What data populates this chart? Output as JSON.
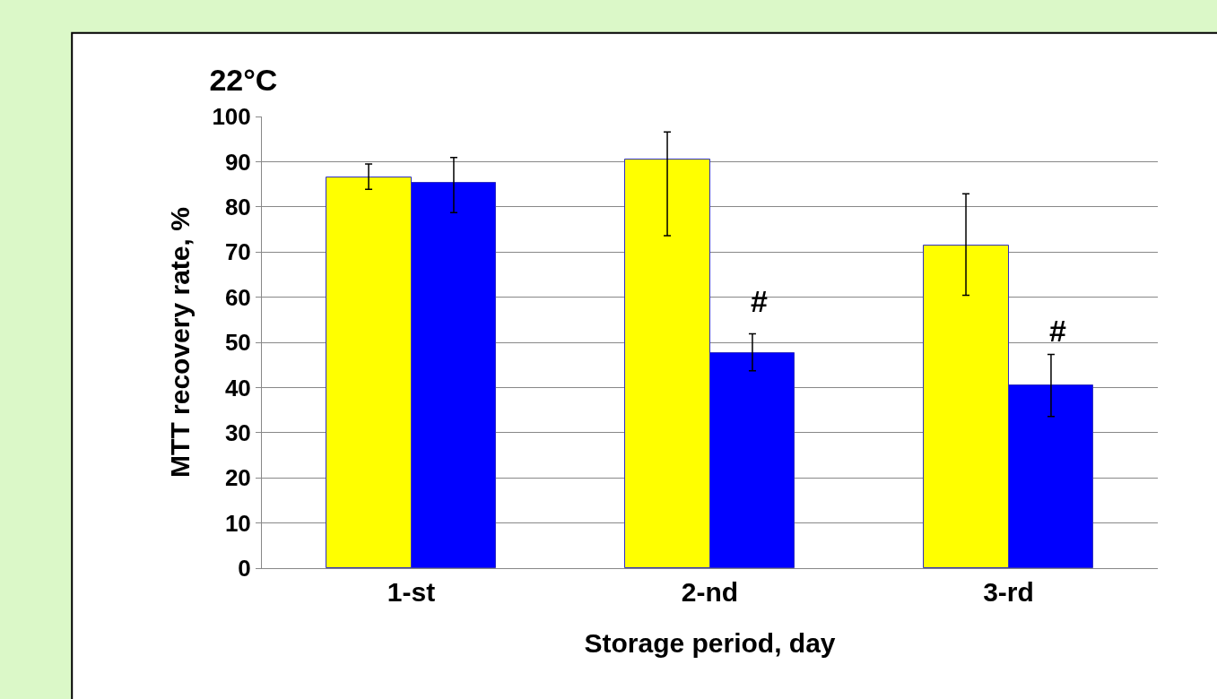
{
  "chart_data": {
    "type": "bar",
    "title": "22°C",
    "xlabel": "Storage period, day",
    "ylabel": "MTT recovery rate, %",
    "categories": [
      "1-st",
      "2-nd",
      "3-rd"
    ],
    "series": [
      {
        "color": "#ffff00",
        "values": [
          86.5,
          90.5,
          71.4
        ],
        "errors": [
          [
            83.9,
            89.5
          ],
          [
            73.6,
            96.6
          ],
          [
            60.4,
            82.9
          ]
        ]
      },
      {
        "color": "#0000ff",
        "values": [
          85.3,
          47.7,
          40.4
        ],
        "errors": [
          [
            78.7,
            90.9
          ],
          [
            43.7,
            51.9
          ],
          [
            33.6,
            47.3
          ]
        ]
      }
    ],
    "annotations": [
      {
        "text": "#",
        "x": "2-nd",
        "y": 55
      },
      {
        "text": "#",
        "x": "3-rd",
        "y": 48.5
      }
    ],
    "ylim": [
      0,
      100
    ],
    "yticks": [
      0,
      10,
      20,
      30,
      40,
      50,
      60,
      70,
      80,
      90,
      100
    ],
    "grid": "y"
  }
}
